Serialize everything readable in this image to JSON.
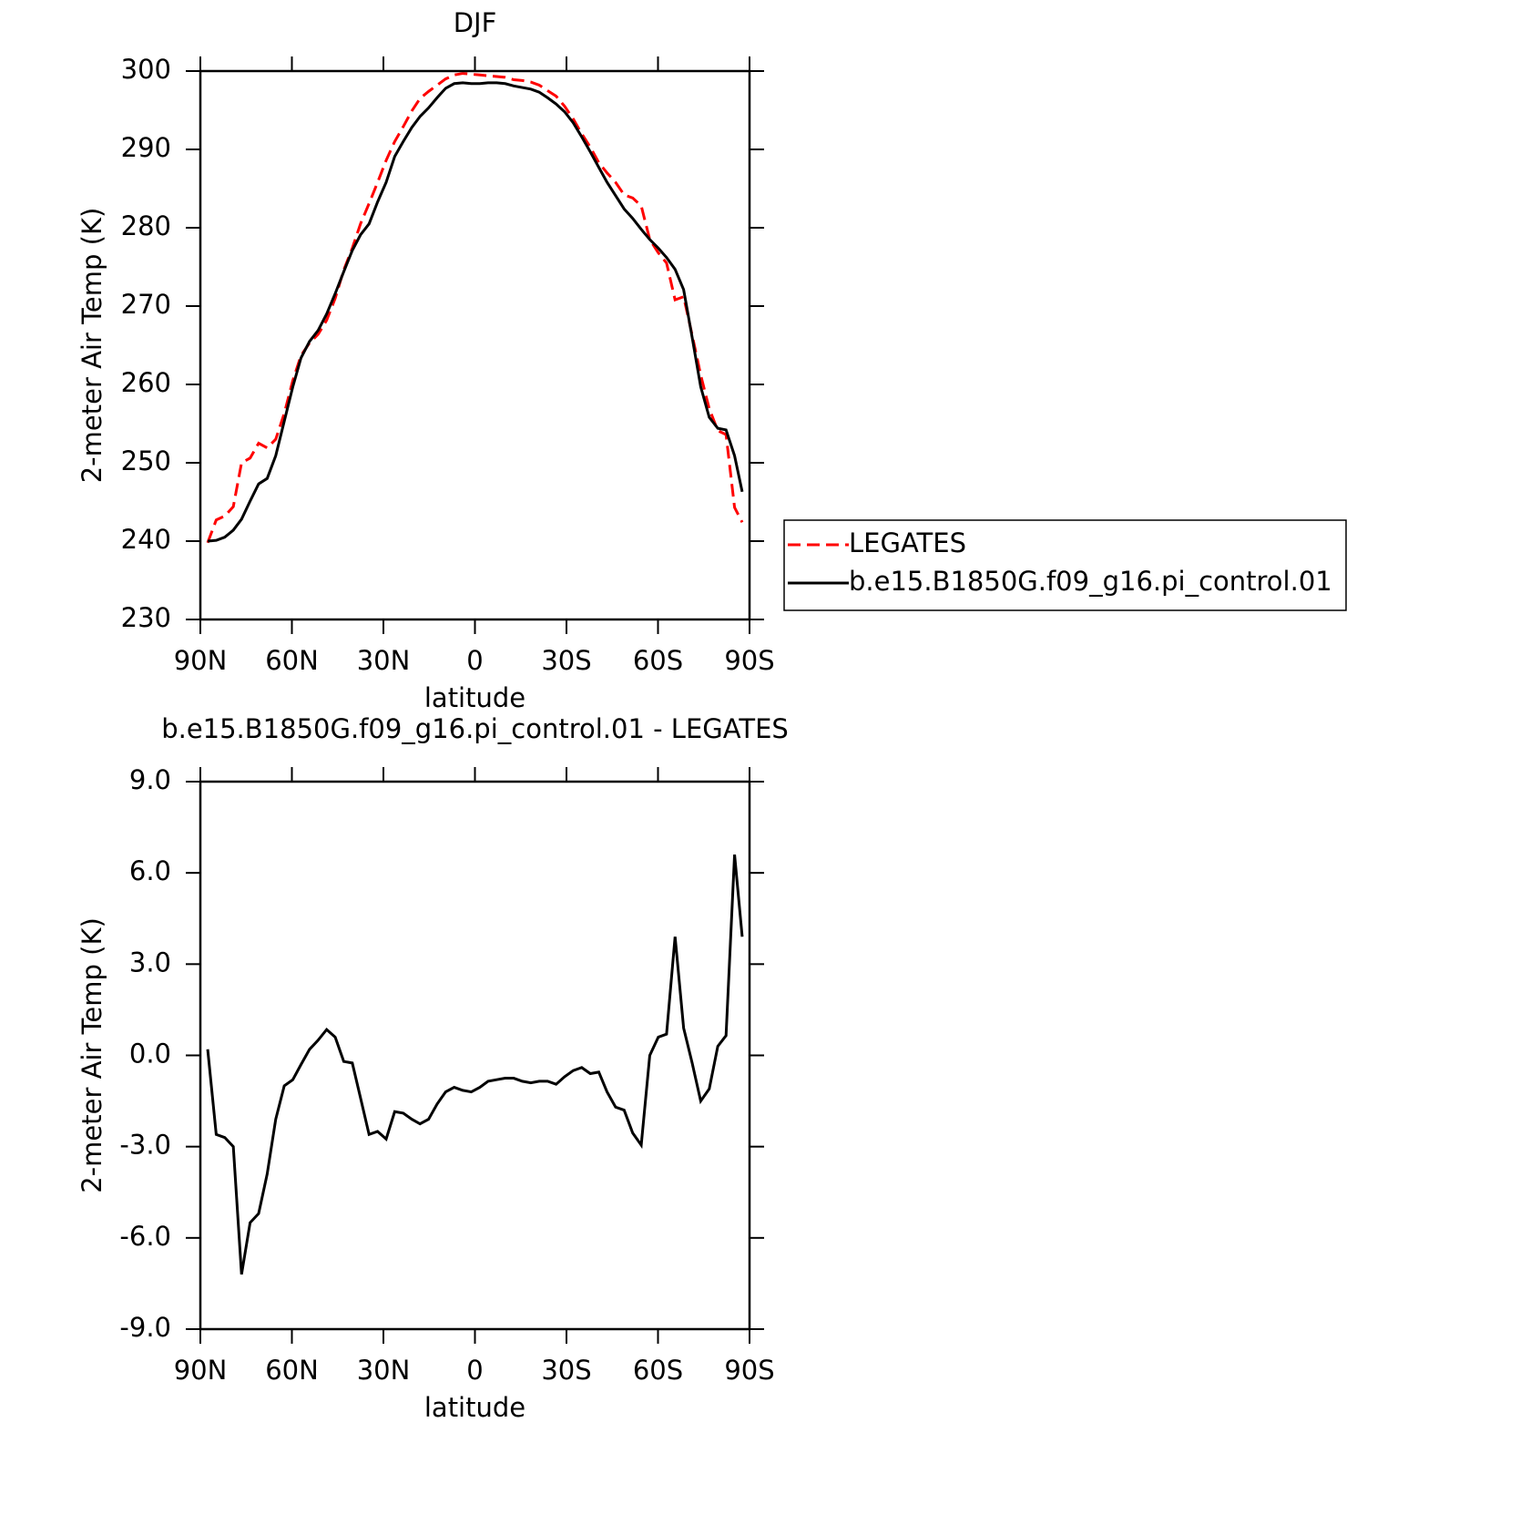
{
  "chart_data": [
    {
      "type": "line",
      "title": "DJF",
      "xlabel": "latitude",
      "ylabel": "2-meter Air Temp (K)",
      "x": [
        87.6,
        84.8,
        82.0,
        79.2,
        76.5,
        73.7,
        70.9,
        68.1,
        65.3,
        62.5,
        59.7,
        57.0,
        54.2,
        51.4,
        48.6,
        45.8,
        43.0,
        40.2,
        37.5,
        34.7,
        31.9,
        29.1,
        26.3,
        23.5,
        20.7,
        18.0,
        15.2,
        12.4,
        9.6,
        6.8,
        4.0,
        1.2,
        -1.6,
        -4.3,
        -7.1,
        -9.9,
        -12.7,
        -15.5,
        -18.3,
        -21.1,
        -23.8,
        -26.6,
        -29.4,
        -32.2,
        -35.0,
        -37.8,
        -40.6,
        -43.3,
        -46.1,
        -48.9,
        -51.7,
        -54.5,
        -57.3,
        -60.1,
        -62.8,
        -65.6,
        -68.4,
        -71.2,
        -74.0,
        -76.8,
        -79.6,
        -82.3,
        -85.1,
        -87.6
      ],
      "series": [
        {
          "name": "LEGATES",
          "color": "#ff0000",
          "dashed": true,
          "values": [
            239.8,
            242.7,
            243.2,
            244.4,
            250.0,
            250.6,
            252.5,
            251.9,
            253.0,
            256.3,
            260.5,
            263.7,
            265.3,
            266.4,
            268.2,
            271.0,
            274.6,
            277.4,
            280.5,
            283.1,
            285.8,
            288.6,
            291.0,
            292.9,
            294.9,
            296.5,
            297.4,
            298.2,
            299.0,
            299.5,
            299.7,
            299.6,
            299.5,
            299.4,
            299.3,
            299.2,
            298.9,
            298.8,
            298.6,
            298.2,
            297.5,
            296.8,
            295.5,
            293.9,
            292.0,
            290.3,
            288.3,
            287.0,
            285.8,
            284.2,
            283.8,
            282.8,
            278.5,
            276.8,
            275.5,
            270.8,
            271.2,
            266.3,
            261.2,
            256.9,
            254.1,
            253.6,
            244.3,
            242.4
          ]
        },
        {
          "name": "b.e15.B1850G.f09_g16.pi_control.01",
          "color": "#000000",
          "dashed": false,
          "values": [
            240.0,
            240.1,
            240.5,
            241.4,
            242.8,
            245.1,
            247.3,
            248.0,
            250.9,
            255.3,
            259.7,
            263.4,
            265.5,
            266.9,
            269.0,
            271.6,
            274.4,
            277.1,
            279.1,
            280.5,
            283.3,
            285.8,
            289.1,
            291.0,
            292.8,
            294.2,
            295.3,
            296.6,
            297.8,
            298.4,
            298.5,
            298.4,
            298.4,
            298.5,
            298.5,
            298.4,
            298.1,
            297.9,
            297.7,
            297.3,
            296.6,
            295.8,
            294.8,
            293.4,
            291.6,
            289.7,
            287.7,
            285.8,
            284.1,
            282.4,
            281.2,
            279.8,
            278.5,
            277.4,
            276.2,
            274.7,
            272.1,
            266.0,
            259.7,
            255.8,
            254.4,
            254.2,
            250.9,
            246.3
          ]
        }
      ],
      "xlim": [
        90,
        -90
      ],
      "xticks": [
        {
          "value": 90,
          "label": "90N"
        },
        {
          "value": 60,
          "label": "60N"
        },
        {
          "value": 30,
          "label": "30N"
        },
        0,
        {
          "value": -30,
          "label": "30S"
        },
        {
          "value": -60,
          "label": "60S"
        },
        {
          "value": -90,
          "label": "90S"
        }
      ],
      "ylim": [
        230,
        300
      ],
      "yticks": [
        230,
        240,
        250,
        260,
        270,
        280,
        290,
        300
      ],
      "legend": "right"
    },
    {
      "type": "line",
      "title": "b.e15.B1850G.f09_g16.pi_control.01 - LEGATES",
      "xlabel": "latitude",
      "ylabel": "2-meter Air Temp (K)",
      "x": [
        87.6,
        84.8,
        82.0,
        79.2,
        76.5,
        73.7,
        70.9,
        68.1,
        65.3,
        62.5,
        59.7,
        57.0,
        54.2,
        51.4,
        48.6,
        45.8,
        43.0,
        40.2,
        37.5,
        34.7,
        31.9,
        29.1,
        26.3,
        23.5,
        20.7,
        18.0,
        15.2,
        12.4,
        9.6,
        6.8,
        4.0,
        1.2,
        -1.6,
        -4.3,
        -7.1,
        -9.9,
        -12.7,
        -15.5,
        -18.3,
        -21.1,
        -23.8,
        -26.6,
        -29.4,
        -32.2,
        -35.0,
        -37.8,
        -40.6,
        -43.3,
        -46.1,
        -48.9,
        -51.7,
        -54.5,
        -57.3,
        -60.1,
        -62.8,
        -65.6,
        -68.4,
        -71.2,
        -74.0,
        -76.8,
        -79.6,
        -82.3,
        -85.1,
        -87.6
      ],
      "series": [
        {
          "color": "#000000",
          "dashed": false,
          "values": [
            0.2,
            -2.6,
            -2.7,
            -3.0,
            -7.2,
            -5.5,
            -5.2,
            -3.9,
            -2.1,
            -1.0,
            -0.8,
            -0.3,
            0.2,
            0.5,
            0.85,
            0.6,
            -0.2,
            -0.25,
            -1.4,
            -2.6,
            -2.5,
            -2.75,
            -1.85,
            -1.9,
            -2.1,
            -2.25,
            -2.1,
            -1.6,
            -1.2,
            -1.05,
            -1.15,
            -1.2,
            -1.05,
            -0.85,
            -0.8,
            -0.75,
            -0.75,
            -0.85,
            -0.9,
            -0.85,
            -0.85,
            -0.95,
            -0.7,
            -0.5,
            -0.4,
            -0.6,
            -0.55,
            -1.2,
            -1.7,
            -1.8,
            -2.55,
            -2.95,
            0.0,
            0.6,
            0.7,
            3.9,
            0.9,
            -0.25,
            -1.5,
            -1.1,
            0.3,
            0.65,
            6.6,
            3.9
          ]
        }
      ],
      "xlim": [
        90,
        -90
      ],
      "xticks": [
        {
          "value": 90,
          "label": "90N"
        },
        {
          "value": 60,
          "label": "60N"
        },
        {
          "value": 30,
          "label": "30N"
        },
        0,
        {
          "value": -30,
          "label": "30S"
        },
        {
          "value": -60,
          "label": "60S"
        },
        {
          "value": -90,
          "label": "90S"
        }
      ],
      "ylim": [
        -9,
        9
      ],
      "yticks": [
        {
          "value": -9,
          "label": "-9.0"
        },
        {
          "value": -6,
          "label": "-6.0"
        },
        {
          "value": -3,
          "label": "-3.0"
        },
        {
          "value": 0,
          "label": "0.0"
        },
        {
          "value": 3,
          "label": "3.0"
        },
        {
          "value": 6,
          "label": "6.0"
        },
        {
          "value": 9,
          "label": "9.0"
        }
      ]
    }
  ]
}
